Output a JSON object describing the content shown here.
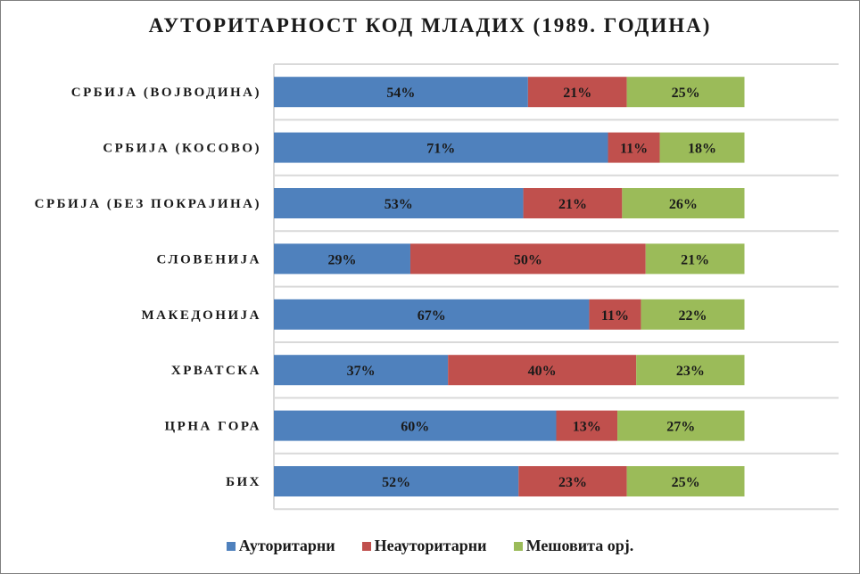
{
  "chart_data": {
    "type": "bar",
    "orientation": "horizontal",
    "stacked": "percent",
    "title": "АУТОРИТАРНОСТ КОД МЛАДИХ (1989. ГОДИНА)",
    "categories": [
      "СРБИЈА (ВОЈВОДИНА)",
      "СРБИЈА (КОСОВО)",
      "СРБИЈА (БЕЗ ПОКРАЈИНА)",
      "СЛОВЕНИЈА",
      "МАКЕДОНИЈА",
      "ХРВАТСКА",
      "ЦРНА ГОРА",
      "БИХ"
    ],
    "series": [
      {
        "name": "Ауторитарни",
        "color": "#4f81bd",
        "values": [
          54,
          71,
          53,
          29,
          67,
          37,
          60,
          52
        ]
      },
      {
        "name": "Неауторитарни",
        "color": "#c0504d",
        "values": [
          21,
          11,
          21,
          50,
          11,
          40,
          13,
          23
        ]
      },
      {
        "name": "Мешовита орј.",
        "color": "#9bbb59",
        "values": [
          25,
          18,
          26,
          21,
          22,
          23,
          27,
          25
        ]
      }
    ],
    "value_suffix": "%",
    "xlim": [
      0,
      120
    ],
    "grid": true,
    "legend_position": "bottom"
  }
}
